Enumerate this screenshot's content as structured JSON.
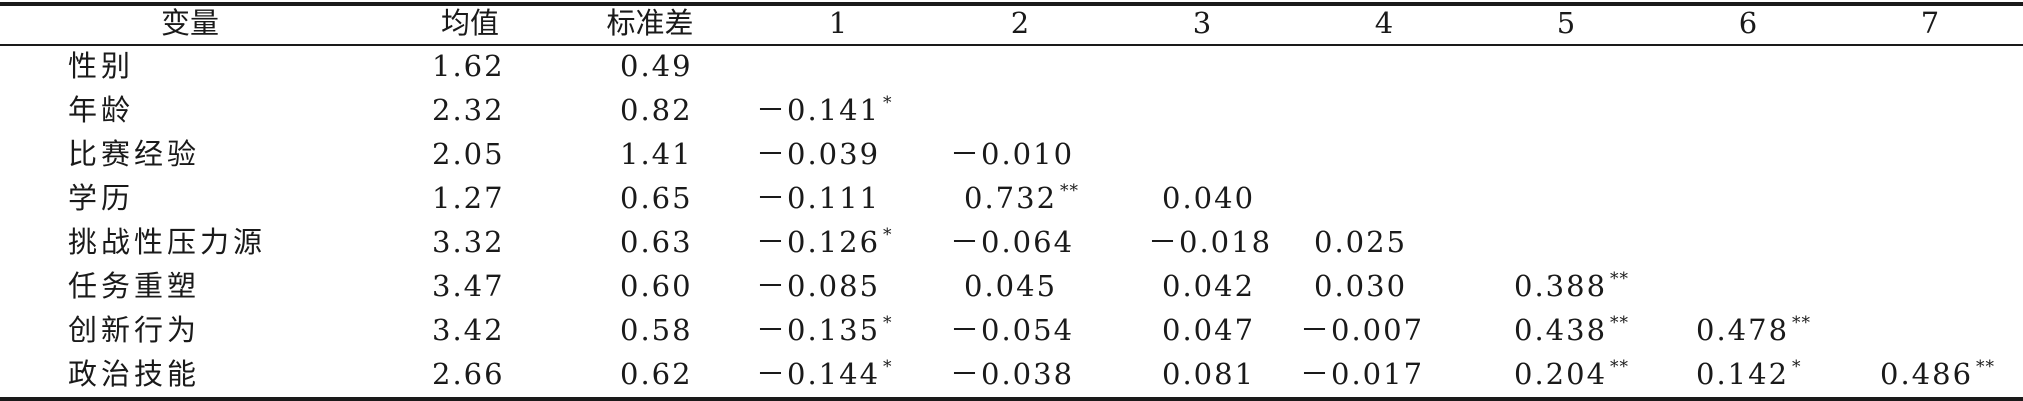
{
  "table": {
    "headers": [
      "变量",
      "均值",
      "标准差",
      "1",
      "2",
      "3",
      "4",
      "5",
      "6",
      "7"
    ],
    "rows": [
      {
        "variable": "性别",
        "mean": "1.62",
        "sd": "0.49",
        "corr": []
      },
      {
        "variable": "年龄",
        "mean": "2.32",
        "sd": "0.82",
        "corr": [
          {
            "v": "－0.141",
            "sig": "*"
          }
        ]
      },
      {
        "variable": "比赛经验",
        "mean": "2.05",
        "sd": "1.41",
        "corr": [
          {
            "v": "－0.039",
            "sig": ""
          },
          {
            "v": "－0.010",
            "sig": ""
          }
        ]
      },
      {
        "variable": "学历",
        "mean": "1.27",
        "sd": "0.65",
        "corr": [
          {
            "v": "－0.111",
            "sig": ""
          },
          {
            "v": "0.732",
            "sig": "**"
          },
          {
            "v": "0.040",
            "sig": ""
          }
        ]
      },
      {
        "variable": "挑战性压力源",
        "mean": "3.32",
        "sd": "0.63",
        "corr": [
          {
            "v": "－0.126",
            "sig": "*"
          },
          {
            "v": "－0.064",
            "sig": ""
          },
          {
            "v": "－0.018",
            "sig": ""
          },
          {
            "v": "0.025",
            "sig": ""
          }
        ]
      },
      {
        "variable": "任务重塑",
        "mean": "3.47",
        "sd": "0.60",
        "corr": [
          {
            "v": "－0.085",
            "sig": ""
          },
          {
            "v": "0.045",
            "sig": ""
          },
          {
            "v": "0.042",
            "sig": ""
          },
          {
            "v": "0.030",
            "sig": ""
          },
          {
            "v": "0.388",
            "sig": "**"
          }
        ]
      },
      {
        "variable": "创新行为",
        "mean": "3.42",
        "sd": "0.58",
        "corr": [
          {
            "v": "－0.135",
            "sig": "*"
          },
          {
            "v": "－0.054",
            "sig": ""
          },
          {
            "v": "0.047",
            "sig": ""
          },
          {
            "v": "－0.007",
            "sig": ""
          },
          {
            "v": "0.438",
            "sig": "**"
          },
          {
            "v": "0.478",
            "sig": "**"
          }
        ]
      },
      {
        "variable": "政治技能",
        "mean": "2.66",
        "sd": "0.62",
        "corr": [
          {
            "v": "－0.144",
            "sig": "*"
          },
          {
            "v": "－0.038",
            "sig": ""
          },
          {
            "v": "0.081",
            "sig": ""
          },
          {
            "v": "－0.017",
            "sig": ""
          },
          {
            "v": "0.204",
            "sig": "**"
          },
          {
            "v": "0.142",
            "sig": "*"
          },
          {
            "v": "0.486",
            "sig": "**"
          }
        ]
      }
    ]
  }
}
